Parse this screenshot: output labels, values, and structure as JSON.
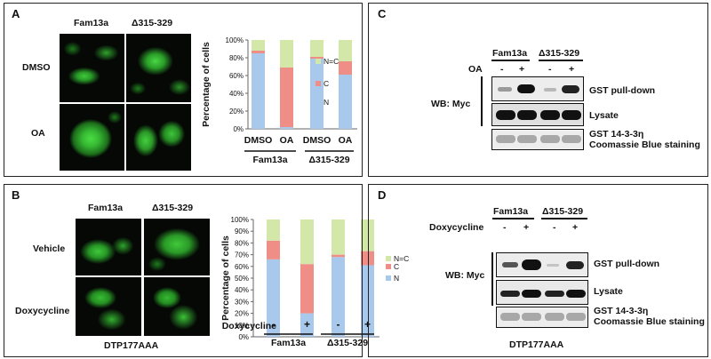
{
  "colors": {
    "N": "#a9c9ec",
    "C": "#ef8e87",
    "NC": "#d3e8a8",
    "gfp": "#3fd23a"
  },
  "panelA": {
    "letter": "A",
    "col_fam": "Fam13a",
    "col_del": "Δ315-329",
    "row_dmso": "DMSO",
    "row_oa": "OA"
  },
  "panelB": {
    "letter": "B",
    "col_fam": "Fam13a",
    "col_del": "Δ315-329",
    "row_vehicle": "Vehicle",
    "row_dox": "Doxycycline",
    "caption": "DTP177AAA"
  },
  "panelC": {
    "letter": "C",
    "col_fam": "Fam13a",
    "col_del": "Δ315-329",
    "treat": "OA",
    "signs": [
      "-",
      "+",
      "-",
      "+"
    ],
    "wb": "WB: Myc",
    "row1": "GST pull-down",
    "row2": "Lysate",
    "row3a": "GST 14-3-3η",
    "row3b": "Coomassie Blue staining"
  },
  "panelD": {
    "letter": "D",
    "col_fam": "Fam13a",
    "col_del": "Δ315-329",
    "treat": "Doxycycline",
    "signs": [
      "-",
      "+",
      "-",
      "+"
    ],
    "wb": "WB: Myc",
    "row1": "GST pull-down",
    "row2": "Lysate",
    "row3a": "GST 14-3-3η",
    "row3b": "Coomassie Blue staining",
    "caption": "DTP177AAA"
  },
  "chart_data": [
    {
      "type": "bar",
      "stacked": true,
      "categories": [
        "DMSO",
        "OA",
        "DMSO",
        "OA"
      ],
      "groups": [
        "Fam13a",
        "Δ315-329"
      ],
      "series": [
        {
          "name": "N",
          "values": [
            85,
            2,
            79,
            61
          ]
        },
        {
          "name": "C",
          "values": [
            3,
            67,
            2,
            15
          ]
        },
        {
          "name": "N=C",
          "values": [
            12,
            31,
            19,
            24
          ]
        }
      ],
      "ylabel": "Percentage of cells",
      "yticks": [
        "0%",
        "20%",
        "40%",
        "60%",
        "80%",
        "100%"
      ],
      "ylim": [
        0,
        100
      ],
      "legend": "right"
    },
    {
      "type": "bar",
      "stacked": true,
      "categories": [
        "-",
        "+",
        "-",
        "+"
      ],
      "category_axis_label": "Doxycycline",
      "groups": [
        "Fam13a",
        "Δ315-329"
      ],
      "series": [
        {
          "name": "N",
          "values": [
            66,
            20,
            68,
            61
          ]
        },
        {
          "name": "C",
          "values": [
            16,
            42,
            2,
            12
          ]
        },
        {
          "name": "N=C",
          "values": [
            18,
            38,
            30,
            27
          ]
        }
      ],
      "ylabel": "Percentage of cells",
      "yticks": [
        "0%",
        "10%",
        "20%",
        "30%",
        "40%",
        "50%",
        "60%",
        "70%",
        "80%",
        "90%",
        "100%"
      ],
      "ylim": [
        0,
        100
      ],
      "legend": "right"
    }
  ]
}
